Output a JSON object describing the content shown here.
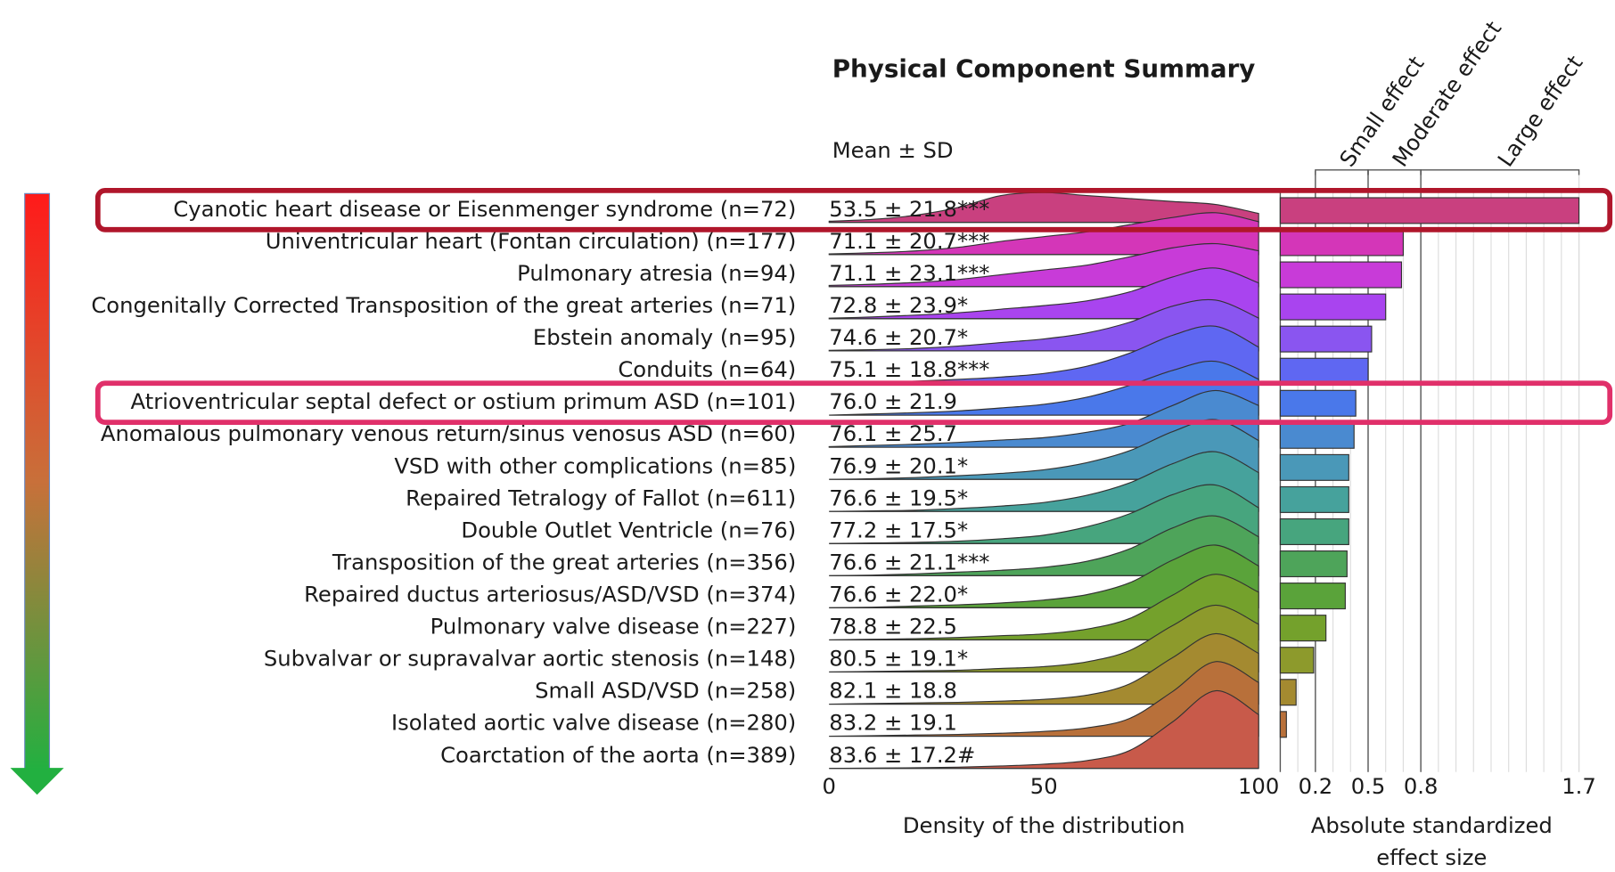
{
  "chart_data": {
    "type": "ridgeline",
    "title": "Physical Component Summary",
    "column_header": "Mean ± SD",
    "categories": [
      "Cyanotic heart disease or Eisenmenger syndrome (n=72)",
      "Univentricular heart (Fontan circulation) (n=177)",
      "Pulmonary atresia (n=94)",
      "Congenitally Corrected Transposition of the great arteries (n=71)",
      "Ebstein anomaly (n=95)",
      "Conduits (n=64)",
      "Atrioventricular septal defect or ostium primum ASD (n=101)",
      "Anomalous pulmonary venous return/sinus venosus ASD (n=60)",
      "VSD with other complications (n=85)",
      "Repaired Tetralogy of Fallot (n=611)",
      "Double Outlet Ventricle (n=76)",
      "Transposition of the great arteries (n=356)",
      "Repaired ductus arteriosus/ASD/VSD (n=374)",
      "Pulmonary valve disease (n=227)",
      "Subvalvar or supravalvar aortic stenosis (n=148)",
      "Small ASD/VSD (n=258)",
      "Isolated aortic valve disease (n=280)",
      "Coarctation of the aorta (n=389)"
    ],
    "mean_sd": [
      "53.5 ± 21.8***",
      "71.1 ± 20.7***",
      "71.1 ± 23.1***",
      "72.8 ± 23.9*",
      "74.6 ± 20.7*",
      "75.1 ± 18.8***",
      "76.0 ± 21.9",
      "76.1 ± 25.7",
      "76.9 ± 20.1*",
      "76.6 ± 19.5*",
      "77.2 ± 17.5*",
      "76.6 ± 21.1***",
      "76.6 ± 22.0*",
      "78.8 ± 22.5",
      "80.5 ± 19.1*",
      "82.1 ± 18.8",
      "83.2 ± 19.1",
      "83.6 ± 17.2#"
    ],
    "colors": [
      "#c9407f",
      "#d436b8",
      "#c83bd8",
      "#a944ef",
      "#8a55f0",
      "#5f67f2",
      "#4a78ea",
      "#4a8ad0",
      "#4a98b8",
      "#46a29c",
      "#47a57e",
      "#4ea45a",
      "#5aa33a",
      "#74a12c",
      "#8d9a2c",
      "#a48a30",
      "#b8703a",
      "#c85a4a"
    ],
    "density_x": [
      0,
      10,
      20,
      30,
      40,
      50,
      60,
      70,
      80,
      90,
      100
    ],
    "densities": [
      [
        0.02,
        0.05,
        0.12,
        0.25,
        0.45,
        0.5,
        0.45,
        0.4,
        0.35,
        0.3,
        0.15
      ],
      [
        0.01,
        0.03,
        0.06,
        0.12,
        0.22,
        0.3,
        0.38,
        0.5,
        0.62,
        0.7,
        0.55
      ],
      [
        0.02,
        0.04,
        0.07,
        0.12,
        0.2,
        0.28,
        0.36,
        0.5,
        0.65,
        0.72,
        0.6
      ],
      [
        0.01,
        0.03,
        0.06,
        0.1,
        0.16,
        0.22,
        0.3,
        0.45,
        0.7,
        0.85,
        0.6
      ],
      [
        0.01,
        0.02,
        0.04,
        0.08,
        0.14,
        0.2,
        0.3,
        0.48,
        0.75,
        0.85,
        0.55
      ],
      [
        0,
        0.01,
        0.03,
        0.06,
        0.1,
        0.16,
        0.28,
        0.5,
        0.8,
        0.95,
        0.6
      ],
      [
        0,
        0.02,
        0.04,
        0.07,
        0.12,
        0.18,
        0.3,
        0.5,
        0.75,
        0.9,
        0.6
      ],
      [
        0.01,
        0.03,
        0.05,
        0.08,
        0.12,
        0.16,
        0.25,
        0.4,
        0.7,
        0.95,
        0.7
      ],
      [
        0,
        0.01,
        0.03,
        0.06,
        0.1,
        0.16,
        0.28,
        0.48,
        0.8,
        1.0,
        0.65
      ],
      [
        0,
        0.01,
        0.02,
        0.05,
        0.09,
        0.15,
        0.27,
        0.48,
        0.8,
        1.0,
        0.65
      ],
      [
        0,
        0.01,
        0.02,
        0.04,
        0.08,
        0.14,
        0.28,
        0.5,
        0.82,
        0.98,
        0.6
      ],
      [
        0,
        0.01,
        0.03,
        0.06,
        0.09,
        0.14,
        0.24,
        0.45,
        0.8,
        1.0,
        0.65
      ],
      [
        0,
        0.01,
        0.03,
        0.05,
        0.08,
        0.13,
        0.22,
        0.42,
        0.8,
        1.05,
        0.7
      ],
      [
        0,
        0.01,
        0.02,
        0.04,
        0.07,
        0.1,
        0.18,
        0.36,
        0.75,
        1.1,
        0.8
      ],
      [
        0,
        0.01,
        0.02,
        0.03,
        0.06,
        0.09,
        0.17,
        0.36,
        0.78,
        1.12,
        0.8
      ],
      [
        0,
        0.01,
        0.02,
        0.03,
        0.05,
        0.08,
        0.15,
        0.34,
        0.78,
        1.18,
        0.85
      ],
      [
        0,
        0.01,
        0.02,
        0.03,
        0.05,
        0.08,
        0.14,
        0.3,
        0.75,
        1.25,
        0.9
      ],
      [
        0,
        0.005,
        0.01,
        0.02,
        0.04,
        0.07,
        0.13,
        0.3,
        0.78,
        1.3,
        0.9
      ]
    ],
    "xlim": [
      0,
      100
    ],
    "xticks": [
      0,
      50,
      100
    ],
    "xlabel": "Density of the distribution",
    "highlights": [
      {
        "row": 0,
        "color": "#b0162b"
      },
      {
        "row": 6,
        "color": "#e0306a"
      }
    ],
    "effect": {
      "type": "bar",
      "values": [
        1.7,
        0.7,
        0.69,
        0.6,
        0.52,
        0.5,
        0.43,
        0.42,
        0.39,
        0.39,
        0.39,
        0.38,
        0.37,
        0.26,
        0.19,
        0.09,
        0.035
      ],
      "xlim": [
        0,
        1.7
      ],
      "xticks": [
        0.2,
        0.5,
        0.8,
        1.7
      ],
      "minor_ticks": [
        0.1,
        0.2,
        0.3,
        0.4,
        0.5,
        0.6,
        0.7,
        0.8,
        0.9,
        1.0,
        1.1,
        1.2,
        1.3,
        1.4,
        1.5,
        1.6,
        1.7
      ],
      "xlabel": "Absolute standardized effect size",
      "bands": [
        {
          "label": "Small effect",
          "from": 0.2,
          "to": 0.5
        },
        {
          "label": "Moderate effect",
          "from": 0.5,
          "to": 0.8
        },
        {
          "label": "Large effect",
          "from": 0.8,
          "to": 1.7
        }
      ]
    }
  }
}
